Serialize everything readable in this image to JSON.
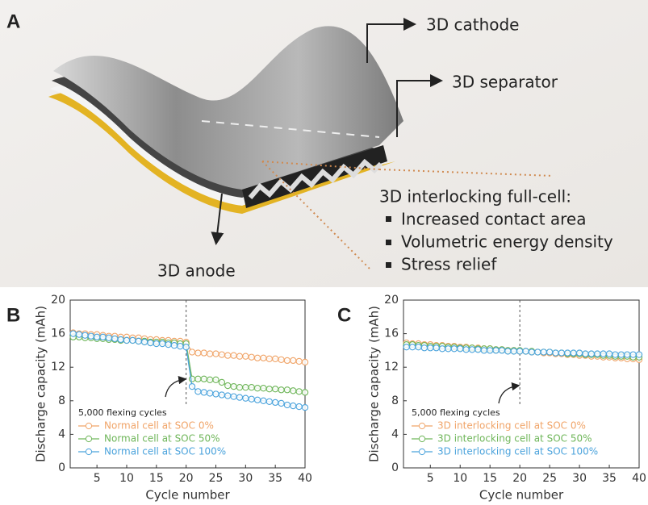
{
  "panel_labels": [
    "A",
    "B",
    "C"
  ],
  "diagram": {
    "cathode": "3D cathode",
    "separator": "3D separator",
    "full_cell": "3D interlocking full-cell:",
    "anode": "3D anode",
    "features": [
      "Increased contact area",
      "Volumetric energy density",
      "Stress relief"
    ]
  },
  "chart_data": [
    {
      "type": "line",
      "xlabel": "Cycle number",
      "ylabel": "Discharge capacity (mAh)",
      "x": [
        1,
        2,
        3,
        4,
        5,
        6,
        7,
        8,
        9,
        10,
        11,
        12,
        13,
        14,
        15,
        16,
        17,
        18,
        19,
        20,
        21,
        22,
        23,
        24,
        25,
        26,
        27,
        28,
        29,
        30,
        31,
        32,
        33,
        34,
        35,
        36,
        37,
        38,
        39,
        40
      ],
      "xlim": [
        0.5,
        40
      ],
      "xticks": [
        5,
        10,
        15,
        20,
        25,
        30,
        35,
        40
      ],
      "ylim": [
        0,
        20
      ],
      "yticks": [
        0,
        4,
        8,
        12,
        16,
        20
      ],
      "vline": 20,
      "annotation": "5,000 flexing cycles",
      "legend": "lower left",
      "series": [
        {
          "name": "Normal cell at SOC 0%",
          "color": "#f0a468",
          "values": [
            16.1,
            16.0,
            16.0,
            15.9,
            15.9,
            15.8,
            15.7,
            15.7,
            15.6,
            15.6,
            15.5,
            15.5,
            15.4,
            15.3,
            15.3,
            15.2,
            15.2,
            15.1,
            15.1,
            15.0,
            13.8,
            13.7,
            13.7,
            13.6,
            13.6,
            13.5,
            13.4,
            13.4,
            13.3,
            13.3,
            13.2,
            13.1,
            13.1,
            13.0,
            13.0,
            12.9,
            12.8,
            12.8,
            12.7,
            12.6
          ]
        },
        {
          "name": "Normal cell at SOC 50%",
          "color": "#6fb65a",
          "values": [
            15.6,
            15.6,
            15.5,
            15.5,
            15.4,
            15.4,
            15.3,
            15.3,
            15.2,
            15.2,
            15.2,
            15.1,
            15.1,
            15.0,
            15.0,
            15.0,
            14.9,
            14.9,
            14.8,
            14.8,
            10.6,
            10.6,
            10.6,
            10.5,
            10.5,
            10.2,
            9.8,
            9.7,
            9.6,
            9.6,
            9.6,
            9.5,
            9.5,
            9.4,
            9.4,
            9.3,
            9.3,
            9.2,
            9.1,
            9.0
          ]
        },
        {
          "name": "Normal cell at SOC 100%",
          "color": "#4ba3dc",
          "values": [
            16.0,
            15.9,
            15.8,
            15.7,
            15.6,
            15.6,
            15.5,
            15.4,
            15.3,
            15.2,
            15.2,
            15.1,
            15.0,
            14.9,
            14.8,
            14.8,
            14.7,
            14.6,
            14.5,
            14.4,
            9.7,
            9.1,
            9.0,
            8.9,
            8.8,
            8.7,
            8.6,
            8.5,
            8.4,
            8.3,
            8.2,
            8.1,
            8.0,
            7.9,
            7.8,
            7.7,
            7.5,
            7.4,
            7.3,
            7.2
          ]
        }
      ]
    },
    {
      "type": "line",
      "xlabel": "Cycle number",
      "ylabel": "Discharge capacity (mAh)",
      "x": [
        1,
        2,
        3,
        4,
        5,
        6,
        7,
        8,
        9,
        10,
        11,
        12,
        13,
        14,
        15,
        16,
        17,
        18,
        19,
        20,
        21,
        22,
        23,
        24,
        25,
        26,
        27,
        28,
        29,
        30,
        31,
        32,
        33,
        34,
        35,
        36,
        37,
        38,
        39,
        40
      ],
      "xlim": [
        0.5,
        40
      ],
      "xticks": [
        5,
        10,
        15,
        20,
        25,
        30,
        35,
        40
      ],
      "ylim": [
        0,
        20
      ],
      "yticks": [
        0,
        4,
        8,
        12,
        16,
        20
      ],
      "vline": 20,
      "annotation": "5,000 flexing cycles",
      "legend": "lower left",
      "series": [
        {
          "name": "3D interlocking cell at SOC 0%",
          "color": "#f0a468",
          "values": [
            14.9,
            14.8,
            14.8,
            14.7,
            14.7,
            14.6,
            14.6,
            14.5,
            14.5,
            14.4,
            14.4,
            14.3,
            14.3,
            14.2,
            14.2,
            14.1,
            14.1,
            14.0,
            14.0,
            13.9,
            13.9,
            13.8,
            13.8,
            13.7,
            13.7,
            13.6,
            13.6,
            13.5,
            13.5,
            13.4,
            13.4,
            13.3,
            13.3,
            13.2,
            13.2,
            13.1,
            13.1,
            13.0,
            13.0,
            12.9
          ]
        },
        {
          "name": "3D interlocking cell at SOC 50%",
          "color": "#6fb65a",
          "values": [
            14.7,
            14.7,
            14.6,
            14.6,
            14.5,
            14.5,
            14.5,
            14.4,
            14.4,
            14.3,
            14.3,
            14.3,
            14.2,
            14.2,
            14.2,
            14.1,
            14.1,
            14.0,
            14.0,
            14.0,
            13.9,
            13.9,
            13.8,
            13.8,
            13.8,
            13.7,
            13.7,
            13.6,
            13.6,
            13.6,
            13.5,
            13.5,
            13.5,
            13.4,
            13.4,
            13.3,
            13.3,
            13.3,
            13.2,
            13.2
          ]
        },
        {
          "name": "3D interlocking cell at SOC 100%",
          "color": "#4ba3dc",
          "values": [
            14.4,
            14.4,
            14.4,
            14.3,
            14.3,
            14.3,
            14.2,
            14.2,
            14.2,
            14.2,
            14.1,
            14.1,
            14.1,
            14.0,
            14.0,
            14.0,
            14.0,
            13.9,
            13.9,
            13.9,
            13.9,
            13.8,
            13.8,
            13.8,
            13.8,
            13.7,
            13.7,
            13.7,
            13.7,
            13.7,
            13.6,
            13.6,
            13.6,
            13.6,
            13.6,
            13.5,
            13.5,
            13.5,
            13.5,
            13.5
          ]
        }
      ]
    }
  ]
}
